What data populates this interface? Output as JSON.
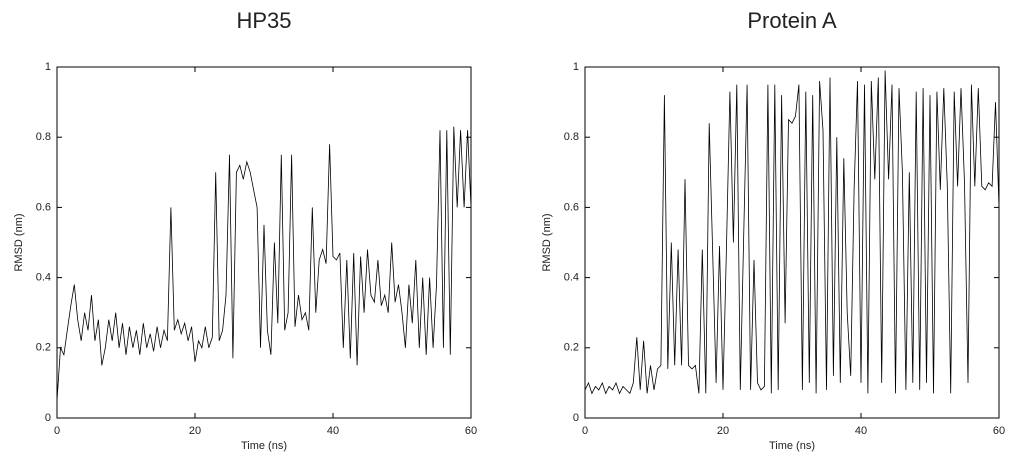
{
  "chart_data": [
    {
      "type": "line",
      "title": "HP35",
      "xlabel": "Time (ns)",
      "ylabel": "RMSD (nm)",
      "color": "#000000",
      "x": [
        0,
        0.5,
        1,
        1.5,
        2,
        2.5,
        3,
        3.5,
        4,
        4.5,
        5,
        5.5,
        6,
        6.5,
        7,
        7.5,
        8,
        8.5,
        9,
        9.5,
        10,
        10.5,
        11,
        11.5,
        12,
        12.5,
        13,
        13.5,
        14,
        14.5,
        15,
        15.5,
        16,
        16.5,
        17,
        17.5,
        18,
        18.5,
        19,
        19.5,
        20,
        20.5,
        21,
        21.5,
        22,
        22.5,
        23,
        23.5,
        24,
        24.5,
        25,
        25.5,
        26,
        26.5,
        27,
        27.5,
        28,
        28.5,
        29,
        29.5,
        30,
        30.5,
        31,
        31.5,
        32,
        32.5,
        33,
        33.5,
        34,
        34.5,
        35,
        35.5,
        36,
        36.5,
        37,
        37.5,
        38,
        38.5,
        39,
        39.5,
        40,
        40.5,
        41,
        41.5,
        42,
        42.5,
        43,
        43.5,
        44,
        44.5,
        45,
        45.5,
        46,
        46.5,
        47,
        47.5,
        48,
        48.5,
        49,
        49.5,
        50,
        50.5,
        51,
        51.5,
        52,
        52.5,
        53,
        53.5,
        54,
        54.5,
        55,
        55.5,
        56,
        56.5,
        57,
        57.5,
        58,
        58.5,
        59,
        59.5,
        60
      ],
      "values": [
        0.05,
        0.2,
        0.18,
        0.25,
        0.32,
        0.38,
        0.28,
        0.22,
        0.3,
        0.25,
        0.35,
        0.22,
        0.28,
        0.15,
        0.2,
        0.28,
        0.22,
        0.3,
        0.2,
        0.27,
        0.18,
        0.26,
        0.2,
        0.25,
        0.18,
        0.27,
        0.2,
        0.24,
        0.19,
        0.26,
        0.2,
        0.25,
        0.22,
        0.6,
        0.25,
        0.28,
        0.24,
        0.27,
        0.22,
        0.26,
        0.16,
        0.22,
        0.2,
        0.26,
        0.2,
        0.23,
        0.7,
        0.22,
        0.25,
        0.35,
        0.75,
        0.17,
        0.7,
        0.72,
        0.68,
        0.73,
        0.7,
        0.65,
        0.6,
        0.2,
        0.55,
        0.25,
        0.18,
        0.5,
        0.27,
        0.75,
        0.25,
        0.3,
        0.75,
        0.26,
        0.35,
        0.28,
        0.3,
        0.25,
        0.6,
        0.3,
        0.45,
        0.48,
        0.44,
        0.78,
        0.46,
        0.45,
        0.47,
        0.2,
        0.45,
        0.17,
        0.47,
        0.15,
        0.46,
        0.3,
        0.48,
        0.35,
        0.33,
        0.45,
        0.32,
        0.35,
        0.3,
        0.5,
        0.33,
        0.38,
        0.3,
        0.2,
        0.38,
        0.27,
        0.45,
        0.2,
        0.4,
        0.18,
        0.4,
        0.2,
        0.38,
        0.82,
        0.2,
        0.82,
        0.18,
        0.83,
        0.6,
        0.82,
        0.6,
        0.82,
        0.6
      ],
      "xlim": [
        0,
        60
      ],
      "ylim": [
        0,
        1
      ],
      "xticks": [
        0,
        20,
        40,
        60
      ],
      "yticks": [
        0,
        0.2,
        0.4,
        0.6,
        0.8,
        1
      ]
    },
    {
      "type": "line",
      "title": "Protein A",
      "xlabel": "Time (ns)",
      "ylabel": "RMSD (nm)",
      "color": "#000000",
      "x": [
        0,
        0.5,
        1,
        1.5,
        2,
        2.5,
        3,
        3.5,
        4,
        4.5,
        5,
        5.5,
        6,
        6.5,
        7,
        7.5,
        8,
        8.5,
        9,
        9.5,
        10,
        10.5,
        11,
        11.5,
        12,
        12.5,
        13,
        13.5,
        14,
        14.5,
        15,
        15.5,
        16,
        16.5,
        17,
        17.5,
        18,
        18.5,
        19,
        19.5,
        20,
        20.5,
        21,
        21.5,
        22,
        22.5,
        23,
        23.5,
        24,
        24.5,
        25,
        25.5,
        26,
        26.5,
        27,
        27.5,
        28,
        28.5,
        29,
        29.5,
        30,
        30.5,
        31,
        31.5,
        32,
        32.5,
        33,
        33.5,
        34,
        34.5,
        35,
        35.5,
        36,
        36.5,
        37,
        37.5,
        38,
        38.5,
        39,
        39.5,
        40,
        40.5,
        41,
        41.5,
        42,
        42.5,
        43,
        43.5,
        44,
        44.5,
        45,
        45.5,
        46,
        46.5,
        47,
        47.5,
        48,
        48.5,
        49,
        49.5,
        50,
        50.5,
        51,
        51.5,
        52,
        52.5,
        53,
        53.5,
        54,
        54.5,
        55,
        55.5,
        56,
        56.5,
        57,
        57.5,
        58,
        58.5,
        59,
        59.5,
        60
      ],
      "values": [
        0.08,
        0.1,
        0.07,
        0.09,
        0.08,
        0.1,
        0.07,
        0.09,
        0.08,
        0.1,
        0.07,
        0.09,
        0.08,
        0.07,
        0.1,
        0.23,
        0.08,
        0.22,
        0.07,
        0.15,
        0.08,
        0.14,
        0.15,
        0.92,
        0.14,
        0.5,
        0.15,
        0.48,
        0.15,
        0.68,
        0.15,
        0.14,
        0.15,
        0.07,
        0.48,
        0.07,
        0.84,
        0.48,
        0.1,
        0.49,
        0.08,
        0.49,
        0.93,
        0.5,
        0.95,
        0.08,
        0.52,
        0.95,
        0.08,
        0.45,
        0.1,
        0.08,
        0.09,
        0.95,
        0.07,
        0.95,
        0.08,
        0.92,
        0.27,
        0.85,
        0.84,
        0.86,
        0.95,
        0.08,
        0.93,
        0.1,
        0.92,
        0.07,
        0.96,
        0.82,
        0.08,
        0.97,
        0.12,
        0.8,
        0.1,
        0.74,
        0.3,
        0.12,
        0.65,
        0.96,
        0.1,
        0.95,
        0.07,
        0.96,
        0.68,
        0.97,
        0.1,
        0.99,
        0.68,
        0.95,
        0.07,
        0.94,
        0.7,
        0.08,
        0.7,
        0.1,
        0.93,
        0.08,
        0.94,
        0.1,
        0.92,
        0.07,
        0.93,
        0.65,
        0.94,
        0.66,
        0.07,
        0.93,
        0.66,
        0.94,
        0.67,
        0.1,
        0.95,
        0.66,
        0.94,
        0.66,
        0.65,
        0.67,
        0.66,
        0.9,
        0.6
      ],
      "xlim": [
        0,
        60
      ],
      "ylim": [
        0,
        1
      ],
      "xticks": [
        0,
        20,
        40,
        60
      ],
      "yticks": [
        0,
        0.2,
        0.4,
        0.6,
        0.8,
        1
      ]
    }
  ]
}
